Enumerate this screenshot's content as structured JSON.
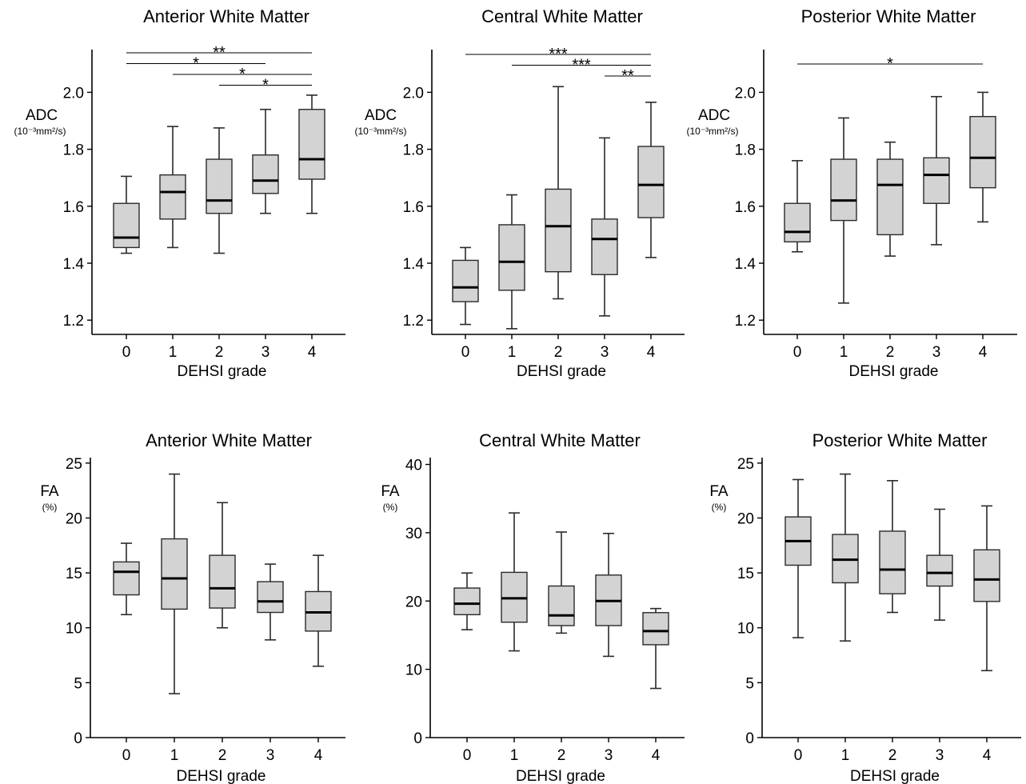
{
  "figure": {
    "x_ticks": [
      "0",
      "1",
      "2",
      "3",
      "4"
    ]
  },
  "chart_data": [
    {
      "type": "boxplot",
      "title": "Anterior White Matter",
      "xlabel": "DEHSI grade",
      "ylabel": "ADC",
      "ylabel_unit": "(10⁻³mm²/s)",
      "categories": [
        "0",
        "1",
        "2",
        "3",
        "4"
      ],
      "ylim": [
        1.15,
        2.15
      ],
      "yticks": [
        1.2,
        1.4,
        1.6,
        1.8,
        2.0
      ],
      "ytick_labels": [
        "1.2",
        "1.4",
        "1.6",
        "1.8",
        "2.0"
      ],
      "boxes": [
        {
          "min": 1.435,
          "q1": 1.455,
          "median": 1.49,
          "q3": 1.61,
          "max": 1.705
        },
        {
          "min": 1.455,
          "q1": 1.555,
          "median": 1.65,
          "q3": 1.71,
          "max": 1.88
        },
        {
          "min": 1.435,
          "q1": 1.575,
          "median": 1.62,
          "q3": 1.765,
          "max": 1.875
        },
        {
          "min": 1.575,
          "q1": 1.645,
          "median": 1.69,
          "q3": 1.78,
          "max": 1.94
        },
        {
          "min": 1.575,
          "q1": 1.695,
          "median": 1.765,
          "q3": 1.94,
          "max": 1.99
        }
      ],
      "significance": [
        {
          "from": "0",
          "to": "4",
          "label": "**"
        },
        {
          "from": "0",
          "to": "3",
          "label": "*"
        },
        {
          "from": "1",
          "to": "4",
          "label": "*"
        },
        {
          "from": "2",
          "to": "4",
          "label": "*"
        }
      ]
    },
    {
      "type": "boxplot",
      "title": "Central White Matter",
      "xlabel": "DEHSI grade",
      "ylabel": "ADC",
      "ylabel_unit": "(10⁻³mm²/s)",
      "categories": [
        "0",
        "1",
        "2",
        "3",
        "4"
      ],
      "ylim": [
        1.15,
        2.15
      ],
      "yticks": [
        1.2,
        1.4,
        1.6,
        1.8,
        2.0
      ],
      "ytick_labels": [
        "1.2",
        "1.4",
        "1.6",
        "1.8",
        "2.0"
      ],
      "boxes": [
        {
          "min": 1.185,
          "q1": 1.265,
          "median": 1.315,
          "q3": 1.41,
          "max": 1.455
        },
        {
          "min": 1.17,
          "q1": 1.305,
          "median": 1.405,
          "q3": 1.535,
          "max": 1.64
        },
        {
          "min": 1.275,
          "q1": 1.37,
          "median": 1.53,
          "q3": 1.66,
          "max": 2.02
        },
        {
          "min": 1.215,
          "q1": 1.36,
          "median": 1.485,
          "q3": 1.555,
          "max": 1.84
        },
        {
          "min": 1.42,
          "q1": 1.56,
          "median": 1.675,
          "q3": 1.81,
          "max": 1.965
        }
      ],
      "significance": [
        {
          "from": "0",
          "to": "4",
          "label": "***"
        },
        {
          "from": "1",
          "to": "4",
          "label": "***"
        },
        {
          "from": "3",
          "to": "4",
          "label": "**"
        }
      ]
    },
    {
      "type": "boxplot",
      "title": "Posterior White Matter",
      "xlabel": "DEHSI grade",
      "ylabel": "ADC",
      "ylabel_unit": "(10⁻³mm²/s)",
      "categories": [
        "0",
        "1",
        "2",
        "3",
        "4"
      ],
      "ylim": [
        1.15,
        2.15
      ],
      "yticks": [
        1.2,
        1.4,
        1.6,
        1.8,
        2.0
      ],
      "ytick_labels": [
        "1.2",
        "1.4",
        "1.6",
        "1.8",
        "2.0"
      ],
      "boxes": [
        {
          "min": 1.44,
          "q1": 1.475,
          "median": 1.51,
          "q3": 1.61,
          "max": 1.76
        },
        {
          "min": 1.26,
          "q1": 1.55,
          "median": 1.62,
          "q3": 1.765,
          "max": 1.91
        },
        {
          "min": 1.425,
          "q1": 1.5,
          "median": 1.675,
          "q3": 1.765,
          "max": 1.825
        },
        {
          "min": 1.465,
          "q1": 1.61,
          "median": 1.71,
          "q3": 1.77,
          "max": 1.985
        },
        {
          "min": 1.545,
          "q1": 1.665,
          "median": 1.77,
          "q3": 1.915,
          "max": 2.0
        }
      ],
      "significance": [
        {
          "from": "0",
          "to": "4",
          "label": "*"
        }
      ]
    },
    {
      "type": "boxplot",
      "title": "Anterior White Matter",
      "xlabel": "DEHSI grade",
      "ylabel": "FA",
      "ylabel_unit": "(%)",
      "categories": [
        "0",
        "1",
        "2",
        "3",
        "4"
      ],
      "ylim": [
        0,
        25.5
      ],
      "yticks": [
        0,
        5,
        10,
        15,
        20,
        25
      ],
      "ytick_labels": [
        "0",
        "5",
        "10",
        "15",
        "20",
        "25"
      ],
      "boxes": [
        {
          "min": 11.2,
          "q1": 13.0,
          "median": 15.1,
          "q3": 16.0,
          "max": 17.7
        },
        {
          "min": 4.0,
          "q1": 11.7,
          "median": 14.5,
          "q3": 18.1,
          "max": 24.0
        },
        {
          "min": 10.0,
          "q1": 11.8,
          "median": 13.6,
          "q3": 16.6,
          "max": 21.4
        },
        {
          "min": 8.9,
          "q1": 11.4,
          "median": 12.4,
          "q3": 14.2,
          "max": 15.8
        },
        {
          "min": 6.5,
          "q1": 9.7,
          "median": 11.4,
          "q3": 13.3,
          "max": 16.6
        }
      ],
      "significance": []
    },
    {
      "type": "boxplot",
      "title": "Central White Matter",
      "xlabel": "DEHSI grade",
      "ylabel": "FA",
      "ylabel_unit": "(%)",
      "categories": [
        "0",
        "1",
        "2",
        "3",
        "4"
      ],
      "ylim": [
        0,
        41
      ],
      "yticks": [
        0,
        10,
        20,
        30,
        40
      ],
      "ytick_labels": [
        "0",
        "10",
        "20",
        "30",
        "40"
      ],
      "boxes": [
        {
          "min": 15.8,
          "q1": 18.0,
          "median": 19.6,
          "q3": 21.9,
          "max": 24.1
        },
        {
          "min": 12.7,
          "q1": 16.9,
          "median": 20.4,
          "q3": 24.2,
          "max": 32.9
        },
        {
          "min": 15.3,
          "q1": 16.4,
          "median": 17.9,
          "q3": 22.2,
          "max": 30.1
        },
        {
          "min": 11.9,
          "q1": 16.4,
          "median": 20.0,
          "q3": 23.8,
          "max": 29.9
        },
        {
          "min": 7.2,
          "q1": 13.6,
          "median": 15.6,
          "q3": 18.3,
          "max": 18.9
        }
      ],
      "significance": []
    },
    {
      "type": "boxplot",
      "title": "Posterior White Matter",
      "xlabel": "DEHSI grade",
      "ylabel": "FA",
      "ylabel_unit": "(%)",
      "categories": [
        "0",
        "1",
        "2",
        "3",
        "4"
      ],
      "ylim": [
        0,
        25.5
      ],
      "yticks": [
        0,
        5,
        10,
        15,
        20,
        25
      ],
      "ytick_labels": [
        "0",
        "5",
        "10",
        "15",
        "20",
        "25"
      ],
      "boxes": [
        {
          "min": 9.1,
          "q1": 15.7,
          "median": 17.9,
          "q3": 20.1,
          "max": 23.5
        },
        {
          "min": 8.8,
          "q1": 14.1,
          "median": 16.2,
          "q3": 18.5,
          "max": 24.0
        },
        {
          "min": 11.4,
          "q1": 13.1,
          "median": 15.3,
          "q3": 18.8,
          "max": 23.4
        },
        {
          "min": 10.7,
          "q1": 13.8,
          "median": 15.0,
          "q3": 16.6,
          "max": 20.8
        },
        {
          "min": 6.1,
          "q1": 12.4,
          "median": 14.4,
          "q3": 17.1,
          "max": 21.1
        }
      ],
      "significance": []
    }
  ]
}
